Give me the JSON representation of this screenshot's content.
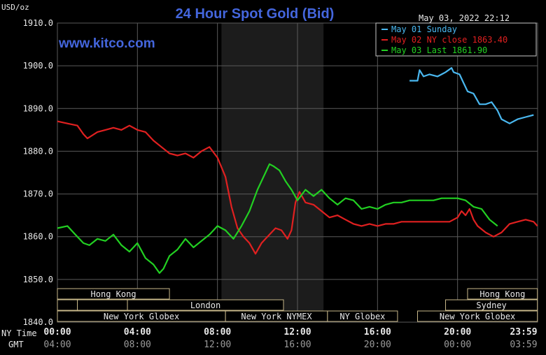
{
  "header": {
    "units": "USD/oz",
    "title": "24 Hour Spot Gold (Bid)",
    "timestamp": "May 03, 2022 22:12",
    "watermark": "www.kitco.com"
  },
  "legend": {
    "placement": "top-right",
    "items": [
      {
        "text": "May 01 Sunday",
        "color": "#4ab8f0"
      },
      {
        "text": "May 02 NY close 1863.40",
        "color": "#e02020"
      },
      {
        "text": "May 03 Last 1861.90",
        "color": "#22d022"
      }
    ]
  },
  "axes": {
    "y_ticks": [
      "1910.0",
      "1900.0",
      "1890.0",
      "1880.0",
      "1870.0",
      "1860.0",
      "1850.0",
      "1840.0"
    ],
    "ny_label": "NY Time",
    "gmt_label": "GMT",
    "x_ticks_ny": [
      "00:00",
      "04:00",
      "08:00",
      "12:00",
      "16:00",
      "20:00",
      "23:59"
    ],
    "x_ticks_gmt": [
      "04:00",
      "08:00",
      "12:00",
      "16:00",
      "20:00",
      "00:00",
      "03:59"
    ]
  },
  "sessions": {
    "hong_kong": "Hong Kong",
    "london": "London",
    "new_york_globex": "New York Globex",
    "new_york_nymex": "New York NYMEX",
    "ny_globex": "NY Globex",
    "hong_kong_2": "Hong Kong",
    "sydney": "Sydney",
    "new_york_globex_2": "New York Globex"
  },
  "colors": {
    "background": "#000000",
    "grid": "#5a5a5a",
    "nymex_shade": "#1c1c1c",
    "title": "#4466dd",
    "watermark": "#4466dd",
    "session_border": "#c8b88a",
    "session_text": "#e8e8e8"
  },
  "chart_data": {
    "type": "line",
    "title": "24 Hour Spot Gold (Bid)",
    "ylabel": "USD/oz",
    "ylim": [
      1840,
      1910
    ],
    "xlim": [
      0,
      24
    ],
    "grid": true,
    "series": [
      {
        "name": "May 01 Sunday",
        "color": "#4ab8f0",
        "x": [
          17.6,
          18.0,
          18.1,
          18.3,
          18.6,
          19.0,
          19.4,
          19.7,
          19.8,
          20.1,
          20.3,
          20.5,
          20.8,
          21.1,
          21.4,
          21.7,
          22.0,
          22.2,
          22.6,
          23.0,
          23.4,
          23.8
        ],
        "y": [
          1896.5,
          1896.5,
          1899.0,
          1897.5,
          1898.0,
          1897.5,
          1898.5,
          1899.5,
          1898.5,
          1898.0,
          1896.0,
          1894.0,
          1893.5,
          1891.0,
          1891.0,
          1891.5,
          1889.5,
          1887.5,
          1886.5,
          1887.5,
          1888.0,
          1888.5
        ]
      },
      {
        "name": "May 02 NY close 1863.40",
        "color": "#e02020",
        "x": [
          0,
          0.5,
          1.0,
          1.3,
          1.5,
          2.0,
          2.4,
          2.8,
          3.2,
          3.6,
          4.0,
          4.4,
          4.8,
          5.2,
          5.6,
          6.0,
          6.4,
          6.8,
          7.2,
          7.6,
          8.0,
          8.4,
          8.7,
          9.0,
          9.3,
          9.6,
          9.9,
          10.2,
          10.5,
          10.9,
          11.2,
          11.5,
          11.7,
          11.9,
          12.1,
          12.4,
          12.8,
          13.2,
          13.6,
          14.0,
          14.4,
          14.8,
          15.2,
          15.6,
          16.0,
          16.4,
          16.8,
          17.2,
          17.6,
          18.0,
          18.4,
          18.8,
          19.2,
          19.6,
          20.0,
          20.2,
          20.4,
          20.6,
          20.8,
          21.0,
          21.4,
          21.8,
          22.2,
          22.6,
          23.0,
          23.4,
          23.8,
          23.99
        ],
        "y": [
          1887.0,
          1886.5,
          1886.0,
          1884.0,
          1883.0,
          1884.5,
          1885.0,
          1885.5,
          1885.0,
          1886.0,
          1885.0,
          1884.5,
          1882.5,
          1881.0,
          1879.5,
          1879.0,
          1879.5,
          1878.5,
          1880.0,
          1881.0,
          1878.5,
          1874.0,
          1867.0,
          1862.0,
          1860.0,
          1858.5,
          1856.0,
          1858.5,
          1860.0,
          1862.0,
          1861.5,
          1859.5,
          1861.5,
          1868.0,
          1870.5,
          1868.0,
          1867.5,
          1866.0,
          1864.5,
          1865.0,
          1864.0,
          1863.0,
          1862.5,
          1863.0,
          1862.5,
          1863.0,
          1863.0,
          1863.5,
          1863.5,
          1863.5,
          1863.5,
          1863.5,
          1863.5,
          1863.5,
          1864.5,
          1866.0,
          1865.0,
          1866.5,
          1864.0,
          1862.5,
          1861.0,
          1860.0,
          1861.0,
          1863.0,
          1863.5,
          1864.0,
          1863.5,
          1862.5
        ]
      },
      {
        "name": "May 03 Last 1861.90",
        "color": "#22d022",
        "x": [
          0,
          0.5,
          0.9,
          1.3,
          1.6,
          2.0,
          2.4,
          2.8,
          3.2,
          3.6,
          4.0,
          4.4,
          4.8,
          5.1,
          5.3,
          5.6,
          6.0,
          6.4,
          6.8,
          7.2,
          7.6,
          8.0,
          8.4,
          8.8,
          9.2,
          9.6,
          10.0,
          10.4,
          10.6,
          10.8,
          11.1,
          11.4,
          11.7,
          12.0,
          12.4,
          12.8,
          13.2,
          13.6,
          14.0,
          14.4,
          14.8,
          15.2,
          15.6,
          16.0,
          16.4,
          16.8,
          17.2,
          17.6,
          18.0,
          18.4,
          18.8,
          19.2,
          19.6,
          20.0,
          20.4,
          20.8,
          21.2,
          21.6,
          22.0
        ],
        "y": [
          1862.0,
          1862.5,
          1860.5,
          1858.5,
          1858.0,
          1859.5,
          1859.0,
          1860.5,
          1858.0,
          1856.5,
          1858.5,
          1855.0,
          1853.5,
          1851.5,
          1852.5,
          1855.5,
          1857.0,
          1859.5,
          1857.5,
          1859.0,
          1860.5,
          1862.5,
          1861.5,
          1859.5,
          1862.5,
          1866.0,
          1871.0,
          1875.0,
          1877.0,
          1876.5,
          1875.5,
          1873.0,
          1871.0,
          1868.5,
          1871.0,
          1869.5,
          1871.0,
          1869.0,
          1867.5,
          1869.0,
          1868.5,
          1866.5,
          1867.0,
          1866.5,
          1867.5,
          1868.0,
          1868.0,
          1868.5,
          1868.5,
          1868.5,
          1868.5,
          1869.0,
          1869.0,
          1869.0,
          1868.5,
          1867.0,
          1866.5,
          1864.0,
          1862.5
        ]
      }
    ]
  }
}
